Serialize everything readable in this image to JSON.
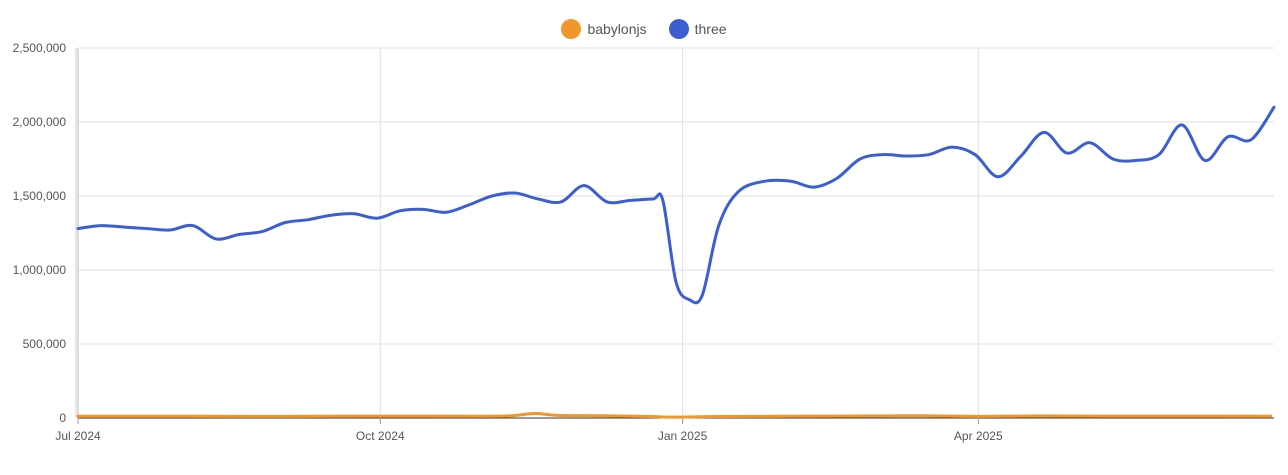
{
  "chart_data": {
    "type": "line",
    "title": "",
    "xlabel": "",
    "ylabel": "",
    "legend_position": "top-center",
    "grid": true,
    "x_range": [
      "2024-07-01",
      "2025-06-30"
    ],
    "ylim": [
      0,
      2500000
    ],
    "y_ticks": [
      {
        "value": 0,
        "label": "0"
      },
      {
        "value": 500000,
        "label": "500,000"
      },
      {
        "value": 1000000,
        "label": "1,000,000"
      },
      {
        "value": 1500000,
        "label": "1,500,000"
      },
      {
        "value": 2000000,
        "label": "2,000,000"
      },
      {
        "value": 2500000,
        "label": "2,500,000"
      }
    ],
    "x_ticks": [
      {
        "date": "2024-07-01",
        "label": "Jul 2024"
      },
      {
        "date": "2024-10-01",
        "label": "Oct 2024"
      },
      {
        "date": "2025-01-01",
        "label": "Jan 2025"
      },
      {
        "date": "2025-04-01",
        "label": "Apr 2025"
      }
    ],
    "series": [
      {
        "name": "babylonjs",
        "color": "#f0962a",
        "points": [
          [
            "2024-07-01",
            12000
          ],
          [
            "2024-07-15",
            12000
          ],
          [
            "2024-08-05",
            12000
          ],
          [
            "2024-09-01",
            11000
          ],
          [
            "2024-10-01",
            13000
          ],
          [
            "2024-11-01",
            12000
          ],
          [
            "2024-11-10",
            15000
          ],
          [
            "2024-11-17",
            30000
          ],
          [
            "2024-11-24",
            18000
          ],
          [
            "2024-12-08",
            15000
          ],
          [
            "2024-12-22",
            10000
          ],
          [
            "2024-12-29",
            6000
          ],
          [
            "2025-01-12",
            10000
          ],
          [
            "2025-02-01",
            12000
          ],
          [
            "2025-03-01",
            14000
          ],
          [
            "2025-03-15",
            15000
          ],
          [
            "2025-04-01",
            11000
          ],
          [
            "2025-04-20",
            14000
          ],
          [
            "2025-05-10",
            13000
          ],
          [
            "2025-05-25",
            13000
          ],
          [
            "2025-06-29",
            12000
          ]
        ]
      },
      {
        "name": "three",
        "color": "#3b5fd3",
        "points": [
          [
            "2024-07-01",
            1280000
          ],
          [
            "2024-07-08",
            1300000
          ],
          [
            "2024-07-15",
            1290000
          ],
          [
            "2024-07-22",
            1280000
          ],
          [
            "2024-07-29",
            1270000
          ],
          [
            "2024-08-05",
            1300000
          ],
          [
            "2024-08-12",
            1210000
          ],
          [
            "2024-08-19",
            1240000
          ],
          [
            "2024-08-26",
            1260000
          ],
          [
            "2024-09-02",
            1320000
          ],
          [
            "2024-09-09",
            1340000
          ],
          [
            "2024-09-16",
            1370000
          ],
          [
            "2024-09-23",
            1380000
          ],
          [
            "2024-09-30",
            1350000
          ],
          [
            "2024-10-07",
            1400000
          ],
          [
            "2024-10-14",
            1410000
          ],
          [
            "2024-10-21",
            1390000
          ],
          [
            "2024-10-28",
            1440000
          ],
          [
            "2024-11-04",
            1500000
          ],
          [
            "2024-11-11",
            1520000
          ],
          [
            "2024-11-18",
            1480000
          ],
          [
            "2024-11-25",
            1460000
          ],
          [
            "2024-12-02",
            1570000
          ],
          [
            "2024-12-09",
            1460000
          ],
          [
            "2024-12-16",
            1470000
          ],
          [
            "2024-12-23",
            1480000
          ],
          [
            "2024-12-26",
            1470000
          ],
          [
            "2024-12-30",
            920000
          ],
          [
            "2025-01-03",
            800000
          ],
          [
            "2025-01-07",
            830000
          ],
          [
            "2025-01-12",
            1300000
          ],
          [
            "2025-01-18",
            1530000
          ],
          [
            "2025-01-26",
            1600000
          ],
          [
            "2025-02-03",
            1600000
          ],
          [
            "2025-02-10",
            1560000
          ],
          [
            "2025-02-17",
            1620000
          ],
          [
            "2025-02-24",
            1750000
          ],
          [
            "2025-03-03",
            1780000
          ],
          [
            "2025-03-10",
            1770000
          ],
          [
            "2025-03-17",
            1780000
          ],
          [
            "2025-03-24",
            1830000
          ],
          [
            "2025-03-31",
            1780000
          ],
          [
            "2025-04-07",
            1630000
          ],
          [
            "2025-04-14",
            1770000
          ],
          [
            "2025-04-21",
            1930000
          ],
          [
            "2025-04-28",
            1790000
          ],
          [
            "2025-05-05",
            1860000
          ],
          [
            "2025-05-12",
            1750000
          ],
          [
            "2025-05-19",
            1740000
          ],
          [
            "2025-05-26",
            1780000
          ],
          [
            "2025-06-02",
            1980000
          ],
          [
            "2025-06-09",
            1740000
          ],
          [
            "2025-06-16",
            1900000
          ],
          [
            "2025-06-23",
            1880000
          ],
          [
            "2025-06-30",
            2100000
          ]
        ]
      }
    ]
  }
}
